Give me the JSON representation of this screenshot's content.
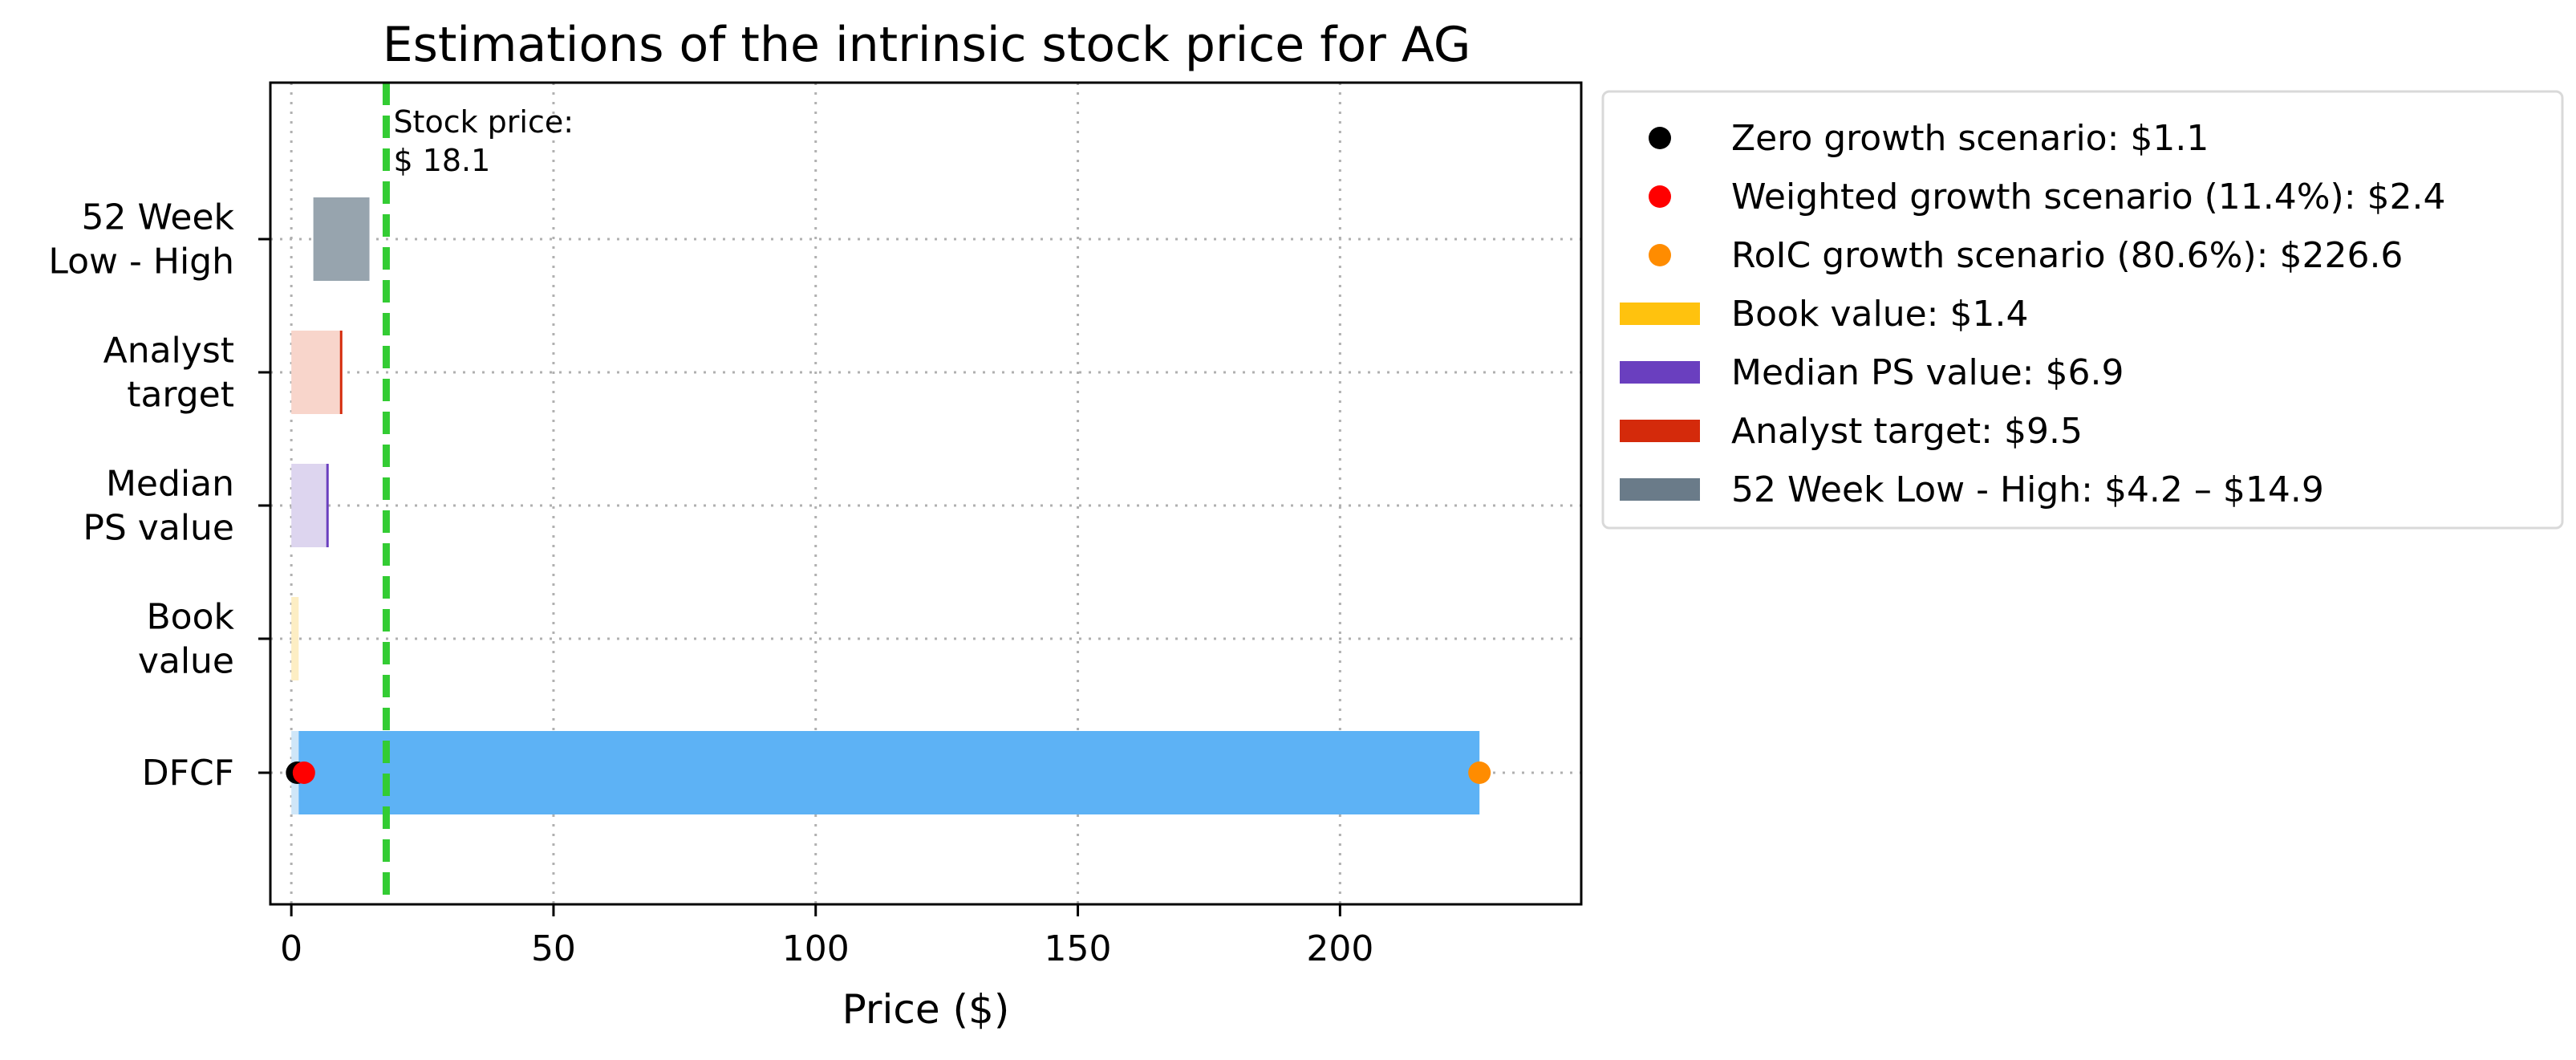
{
  "chart_data": {
    "type": "bar",
    "orientation": "horizontal",
    "title": "Estimations of the intrinsic stock price for AG",
    "xlabel": "Price ($)",
    "ylabel": "",
    "xlim": [
      -4,
      246
    ],
    "x_ticks": [
      0,
      50,
      100,
      150,
      200
    ],
    "grid": true,
    "legend_position": "outside-right-top",
    "categories": [
      "DFCF",
      "Book\nvalue",
      "Median\nPS value",
      "Analyst\ntarget",
      "52 Week\nLow - High"
    ],
    "stock_price": {
      "label": "Stock price:\n$ 18.1",
      "value": 18.1,
      "color": "#33cc33"
    },
    "bars": [
      {
        "category": "DFCF",
        "segments": [
          {
            "from": 0,
            "to": 1.4,
            "color": "#cfe6f8"
          },
          {
            "from": 1.4,
            "to": 226.6,
            "color": "#5db2f5"
          }
        ]
      },
      {
        "category": "Book\nvalue",
        "segments": [
          {
            "from": 0,
            "to": 1.4,
            "color": "#fdeec4"
          }
        ]
      },
      {
        "category": "Median\nPS value",
        "segments": [
          {
            "from": 0,
            "to": 6.9,
            "color": "#ddd5ef"
          }
        ],
        "marker": {
          "value": 6.9,
          "color": "#6a3fbf"
        }
      },
      {
        "category": "Analyst\ntarget",
        "segments": [
          {
            "from": 0,
            "to": 9.5,
            "color": "#f8d5cb"
          }
        ],
        "marker": {
          "value": 9.5,
          "color": "#d42a0b"
        }
      },
      {
        "category": "52 Week\nLow - High",
        "segments": [
          {
            "from": 4.2,
            "to": 14.9,
            "color": "#97a4ae"
          }
        ]
      }
    ],
    "points": [
      {
        "category": "DFCF",
        "value": 1.1,
        "color": "#000000"
      },
      {
        "category": "DFCF",
        "value": 2.4,
        "color": "#ff0000"
      },
      {
        "category": "DFCF",
        "value": 226.6,
        "color": "#ff8c00"
      }
    ],
    "legend": [
      {
        "kind": "dot",
        "color": "#000000",
        "label": "Zero growth scenario: $1.1"
      },
      {
        "kind": "dot",
        "color": "#ff0000",
        "label": "Weighted growth scenario (11.4%): $2.4"
      },
      {
        "kind": "dot",
        "color": "#ff8c00",
        "label": "RoIC growth scenario (80.6%): $226.6"
      },
      {
        "kind": "patch",
        "color": "#ffc20e",
        "label": "Book value: $1.4"
      },
      {
        "kind": "patch",
        "color": "#6a3fbf",
        "label": "Median PS value: $6.9"
      },
      {
        "kind": "patch",
        "color": "#d42a0b",
        "label": "Analyst target: $9.5"
      },
      {
        "kind": "patch",
        "color": "#6a7b89",
        "label": "52 Week Low - High: $4.2 – $14.9"
      }
    ]
  }
}
